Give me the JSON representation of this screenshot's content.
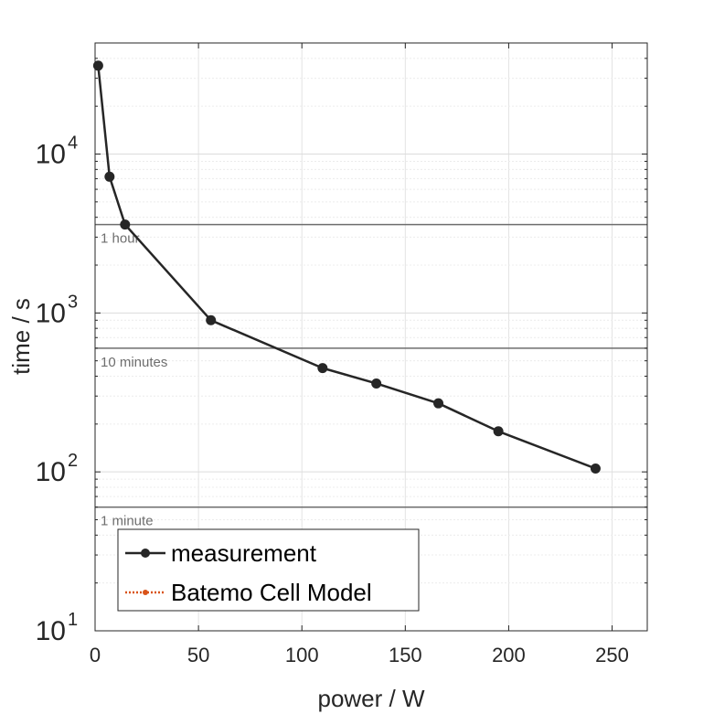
{
  "chart_data": {
    "type": "line",
    "xlabel": "power / W",
    "ylabel": "time / s",
    "xlim": [
      0,
      267
    ],
    "ylim": [
      10,
      50000
    ],
    "y_scale": "log",
    "grid": true,
    "x_ticks": [
      0,
      50,
      100,
      150,
      200,
      250
    ],
    "y_ticks": [
      {
        "value": 10,
        "base": "10",
        "exp": "1"
      },
      {
        "value": 100,
        "base": "10",
        "exp": "2"
      },
      {
        "value": 1000,
        "base": "10",
        "exp": "3"
      },
      {
        "value": 10000,
        "base": "10",
        "exp": "4"
      }
    ],
    "reference_lines": [
      {
        "value": 3600,
        "label": "1 hour"
      },
      {
        "value": 600,
        "label": "10 minutes"
      },
      {
        "value": 60,
        "label": "1 minute"
      }
    ],
    "legend": {
      "placement": "bottom-left",
      "entries": [
        {
          "name": "measurement",
          "color": "#262626",
          "style": "solid"
        },
        {
          "name": "Batemo Cell Model",
          "color": "#d95319",
          "style": "dotted"
        }
      ]
    },
    "series": [
      {
        "name": "measurement",
        "color": "#262626",
        "x": [
          1.5,
          7,
          14.5,
          56,
          110,
          136,
          166,
          195,
          242
        ],
        "y": [
          36000,
          7200,
          3600,
          900,
          450,
          360,
          270,
          180,
          105
        ]
      }
    ]
  }
}
